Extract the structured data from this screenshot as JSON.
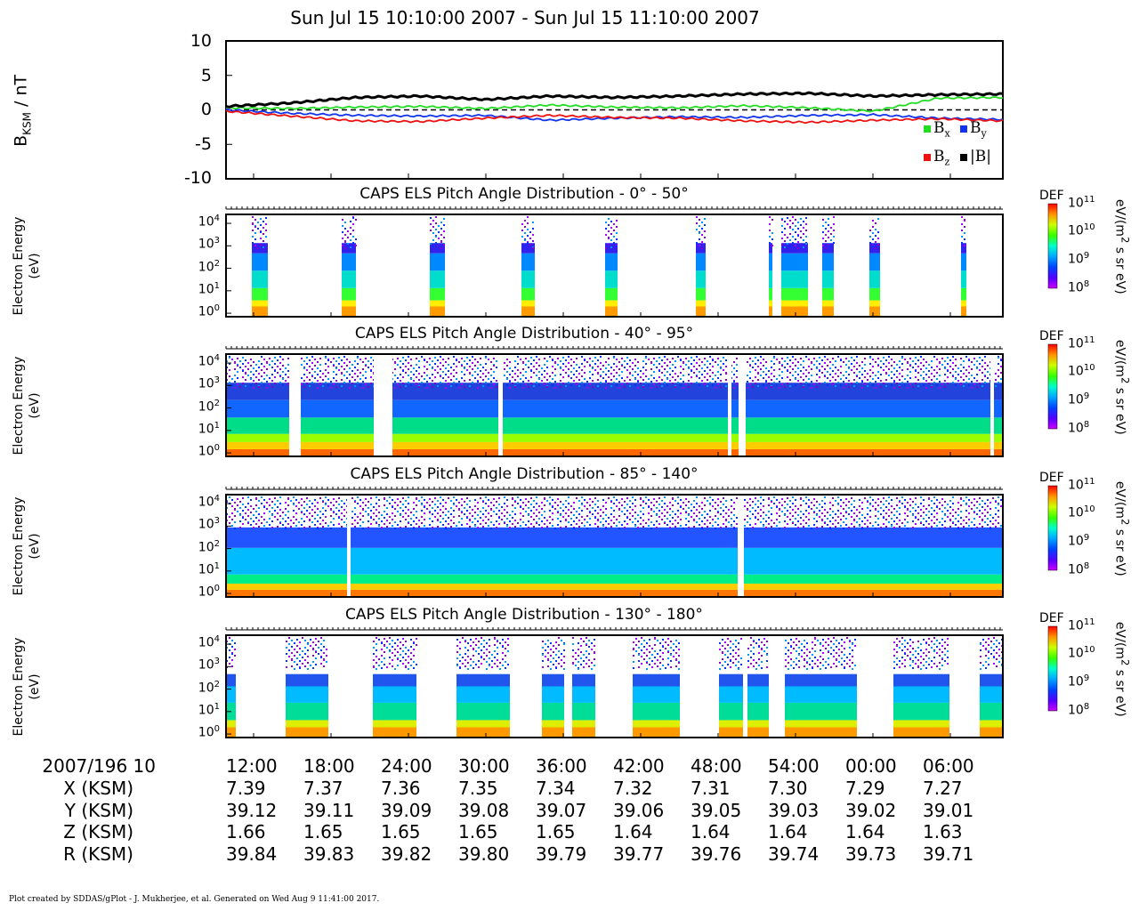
{
  "title": "Sun Jul 15 10:10:00 2007 - Sun Jul 15 11:10:00 2007",
  "bfield": {
    "ylabel_main": "B",
    "ylabel_sub": "KSM",
    "ylabel_unit": " / nT",
    "yticks": [
      "10",
      "5",
      "0",
      "-5",
      "-10"
    ],
    "legend": {
      "bx": "B",
      "bx_sub": "x",
      "by": "B",
      "by_sub": "y",
      "bz": "B",
      "bz_sub": "z",
      "bmag": "|B|"
    },
    "colors": {
      "bx": "#22dd22",
      "by": "#1133ee",
      "bz": "#ee1111",
      "bmag": "#000000"
    }
  },
  "panels": [
    {
      "title": "CAPS ELS Pitch Angle Distribution - 0° - 50°"
    },
    {
      "title": "CAPS ELS Pitch Angle Distribution - 40° - 95°"
    },
    {
      "title": "CAPS ELS Pitch Angle Distribution - 85° - 140°"
    },
    {
      "title": "CAPS ELS Pitch Angle Distribution - 130° - 180°"
    }
  ],
  "energy_axis": {
    "label_line1": "Electron Energy",
    "label_line2": "(eV)",
    "ticks": [
      {
        "base": "10",
        "exp": "4"
      },
      {
        "base": "10",
        "exp": "3"
      },
      {
        "base": "10",
        "exp": "2"
      },
      {
        "base": "10",
        "exp": "1"
      },
      {
        "base": "10",
        "exp": "0"
      }
    ]
  },
  "colorbar": {
    "label": "DEF",
    "unit_a": "eV/(m",
    "unit_exp": "2",
    "unit_b": " s sr eV)",
    "ticks": [
      {
        "base": "10",
        "exp": "11"
      },
      {
        "base": "10",
        "exp": "10"
      },
      {
        "base": "10",
        "exp": "9"
      },
      {
        "base": "10",
        "exp": "8"
      }
    ]
  },
  "time_axis": {
    "start_label": "2007/196 10",
    "ticks": [
      "12:00",
      "18:00",
      "24:00",
      "30:00",
      "36:00",
      "42:00",
      "48:00",
      "54:00",
      "00:00",
      "06:00"
    ]
  },
  "ephemeris": [
    {
      "label": "X (KSM)",
      "values": [
        "7.39",
        "7.37",
        "7.36",
        "7.35",
        "7.34",
        "7.32",
        "7.31",
        "7.30",
        "7.29",
        "7.27"
      ]
    },
    {
      "label": "Y (KSM)",
      "values": [
        "39.12",
        "39.11",
        "39.09",
        "39.08",
        "39.07",
        "39.06",
        "39.05",
        "39.03",
        "39.02",
        "39.01"
      ]
    },
    {
      "label": "Z (KSM)",
      "values": [
        "1.66",
        "1.65",
        "1.65",
        "1.65",
        "1.65",
        "1.64",
        "1.64",
        "1.64",
        "1.64",
        "1.63"
      ]
    },
    {
      "label": "R (KSM)",
      "values": [
        "39.84",
        "39.83",
        "39.82",
        "39.80",
        "39.79",
        "39.77",
        "39.76",
        "39.74",
        "39.73",
        "39.71"
      ]
    }
  ],
  "footer": "Plot created by SDDAS/gPlot - J. Mukherjee, et al.  Generated on Wed Aug 9 11:41:00 2017.",
  "chart_data": [
    {
      "type": "line",
      "title": "Sun Jul 15 10:10:00 2007 - Sun Jul 15 11:10:00 2007",
      "ylabel": "BKSM / nT",
      "ylim": [
        -10,
        10
      ],
      "x_unit": "minutes after 10:10",
      "x": [
        0,
        5,
        10,
        15,
        20,
        25,
        30,
        35,
        40,
        45,
        50,
        55,
        60
      ],
      "series": [
        {
          "name": "Bx",
          "values": [
            0.3,
            0.2,
            0.4,
            0.5,
            0.2,
            0.7,
            0.4,
            0.3,
            0.6,
            0.3,
            -0.2,
            1.7,
            1.8
          ]
        },
        {
          "name": "By",
          "values": [
            0.0,
            -0.5,
            -0.8,
            -0.9,
            -0.8,
            -1.5,
            -1.2,
            -1.0,
            -1.1,
            -0.8,
            -0.7,
            -1.2,
            -1.4
          ]
        },
        {
          "name": "Bz",
          "values": [
            -0.2,
            -0.9,
            -1.6,
            -1.7,
            -1.2,
            -0.8,
            -1.1,
            -1.2,
            -1.6,
            -1.8,
            -1.5,
            -1.3,
            -1.6
          ]
        },
        {
          "name": "|B|",
          "values": [
            0.5,
            1.0,
            1.8,
            2.0,
            1.5,
            2.0,
            1.8,
            2.0,
            2.3,
            2.4,
            2.0,
            2.2,
            2.3
          ]
        }
      ]
    },
    {
      "type": "heatmap",
      "title": "CAPS ELS Pitch Angle Distribution - 0° - 50°",
      "ylabel": "Electron Energy (eV)",
      "yscale": "log",
      "ylim": [
        0.7,
        25000
      ],
      "zlabel": "DEF",
      "zlim": [
        100000000.0,
        100000000000.0
      ]
    },
    {
      "type": "heatmap",
      "title": "CAPS ELS Pitch Angle Distribution - 40° - 95°",
      "ylabel": "Electron Energy (eV)",
      "yscale": "log",
      "ylim": [
        0.7,
        25000
      ],
      "zlabel": "DEF",
      "zlim": [
        100000000.0,
        100000000000.0
      ]
    },
    {
      "type": "heatmap",
      "title": "CAPS ELS Pitch Angle Distribution - 85° - 140°",
      "ylabel": "Electron Energy (eV)",
      "yscale": "log",
      "ylim": [
        0.7,
        25000
      ],
      "zlabel": "DEF",
      "zlim": [
        100000000.0,
        100000000000.0
      ]
    },
    {
      "type": "heatmap",
      "title": "CAPS ELS Pitch Angle Distribution - 130° - 180°",
      "ylabel": "Electron Energy (eV)",
      "yscale": "log",
      "ylim": [
        0.7,
        25000
      ],
      "zlabel": "DEF",
      "zlim": [
        100000000.0,
        100000000000.0
      ]
    }
  ]
}
